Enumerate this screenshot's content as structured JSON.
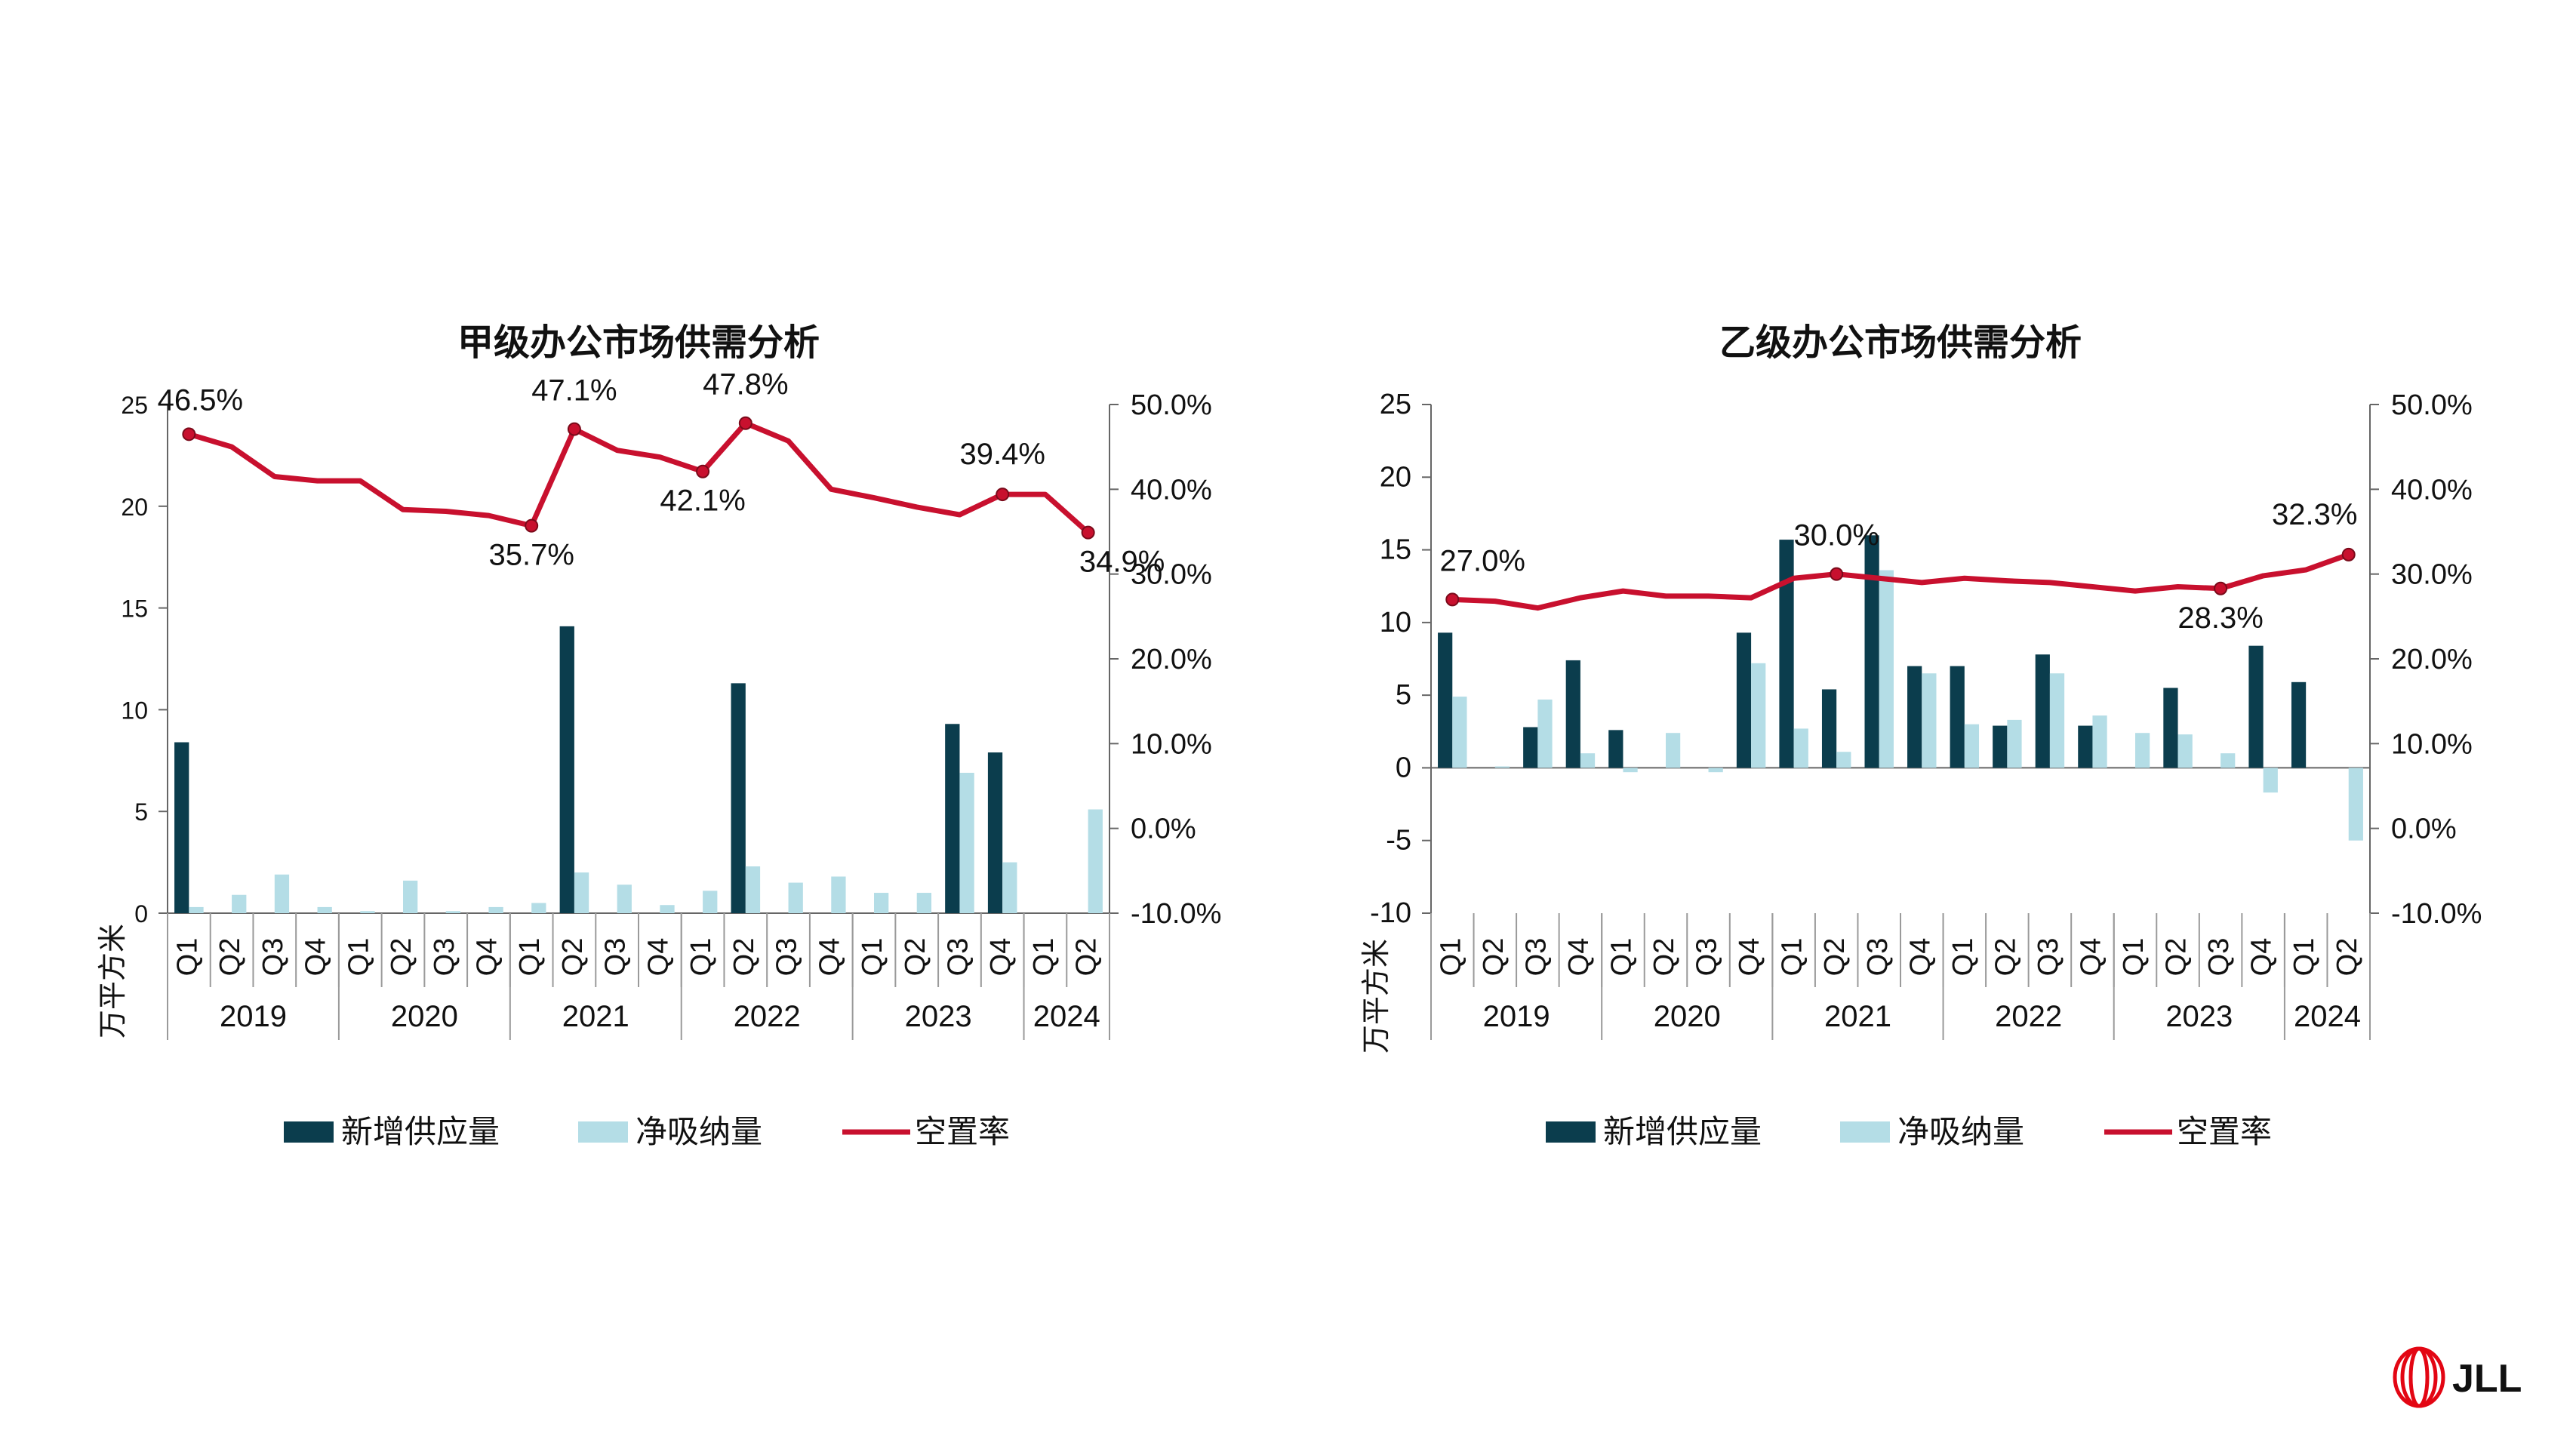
{
  "colors": {
    "supply": "#0b3d4d",
    "absorption": "#b4dde6",
    "vacancy": "#c8102e",
    "axis": "#666666",
    "text": "#111111",
    "brand": "#e30613"
  },
  "common": {
    "quarters": [
      "Q1",
      "Q2",
      "Q3",
      "Q4",
      "Q1",
      "Q2",
      "Q3",
      "Q4",
      "Q1",
      "Q2",
      "Q3",
      "Q4",
      "Q1",
      "Q2",
      "Q3",
      "Q4",
      "Q1",
      "Q2",
      "Q3",
      "Q4",
      "Q1",
      "Q2"
    ],
    "years": [
      {
        "label": "2019",
        "span": 4
      },
      {
        "label": "2020",
        "span": 4
      },
      {
        "label": "2021",
        "span": 4
      },
      {
        "label": "2022",
        "span": 4
      },
      {
        "label": "2023",
        "span": 4
      },
      {
        "label": "2024",
        "span": 2
      }
    ],
    "legend": {
      "supply": "新增供应量",
      "absorption": "净吸纳量",
      "vacancy": "空置率"
    },
    "unit_label": "万平方米"
  },
  "brand": {
    "text": "JLL"
  },
  "chart_data": [
    {
      "type": "bar+line",
      "title": "甲级办公市场供需分析",
      "ylabel": "万平方米",
      "ylim": [
        0,
        25
      ],
      "y_ticks": [
        "25",
        "20",
        "15",
        "10",
        "5",
        "0"
      ],
      "y2lim": [
        -10,
        50
      ],
      "y2_ticks": [
        "50.0%",
        "40.0%",
        "30.0%",
        "20.0%",
        "10.0%",
        "0.0%",
        "-10.0%"
      ],
      "series": [
        {
          "name": "新增供应量",
          "kind": "bar",
          "values": [
            8.4,
            0,
            0,
            0,
            0,
            0,
            0,
            0,
            0,
            14.1,
            0,
            0,
            0,
            11.3,
            0,
            0,
            0,
            0,
            9.3,
            7.9,
            0,
            0
          ]
        },
        {
          "name": "净吸纳量",
          "kind": "bar",
          "values": [
            0.3,
            0.9,
            1.9,
            0.3,
            0.1,
            1.6,
            0.1,
            0.3,
            0.5,
            2.0,
            1.4,
            0.4,
            1.1,
            2.3,
            1.5,
            1.8,
            1.0,
            1.0,
            6.9,
            2.5,
            0,
            5.1
          ]
        },
        {
          "name": "空置率",
          "kind": "line",
          "axis": "right",
          "values": [
            46.5,
            45.0,
            41.5,
            41.0,
            41.0,
            37.6,
            37.4,
            36.9,
            35.7,
            47.1,
            44.6,
            43.8,
            42.1,
            47.8,
            45.7,
            40.0,
            39.0,
            37.9,
            37.0,
            39.4,
            39.4,
            34.9
          ]
        }
      ],
      "annotations": [
        {
          "index": 0,
          "label": "46.5%"
        },
        {
          "index": 8,
          "label": "35.7%"
        },
        {
          "index": 9,
          "label": "47.1%"
        },
        {
          "index": 12,
          "label": "42.1%"
        },
        {
          "index": 13,
          "label": "47.8%"
        },
        {
          "index": 19,
          "label": "39.4%"
        },
        {
          "index": 21,
          "label": "34.9%"
        }
      ]
    },
    {
      "type": "bar+line",
      "title": "乙级办公市场供需分析",
      "ylabel": "万平方米",
      "ylim": [
        -10,
        25
      ],
      "y_ticks": [
        "25",
        "20",
        "15",
        "10",
        "5",
        "0",
        "-5",
        "-10"
      ],
      "y2lim": [
        -10,
        50
      ],
      "y2_ticks": [
        "50.0%",
        "40.0%",
        "30.0%",
        "20.0%",
        "10.0%",
        "0.0%",
        "-10.0%"
      ],
      "series": [
        {
          "name": "新增供应量",
          "kind": "bar",
          "values": [
            9.3,
            0,
            2.8,
            7.4,
            2.6,
            0,
            0,
            9.3,
            15.7,
            5.4,
            16.0,
            7.0,
            7.0,
            2.9,
            7.8,
            2.9,
            0,
            5.5,
            0,
            8.4,
            5.9,
            0
          ]
        },
        {
          "name": "净吸纳量",
          "kind": "bar",
          "values": [
            4.9,
            0.1,
            4.7,
            1.0,
            -0.3,
            2.4,
            -0.3,
            7.2,
            2.7,
            1.1,
            13.6,
            6.5,
            3.0,
            3.3,
            6.5,
            3.6,
            2.4,
            2.3,
            1.0,
            -1.7,
            0,
            -5.0
          ]
        },
        {
          "name": "空置率",
          "kind": "line",
          "axis": "right",
          "values": [
            27.0,
            26.8,
            26.0,
            27.2,
            28.0,
            27.4,
            27.4,
            27.2,
            29.5,
            30.0,
            29.5,
            29.0,
            29.5,
            29.2,
            29.0,
            28.5,
            28.0,
            28.5,
            28.3,
            29.8,
            30.5,
            32.3
          ]
        }
      ],
      "annotations": [
        {
          "index": 0,
          "label": "27.0%"
        },
        {
          "index": 9,
          "label": "30.0%"
        },
        {
          "index": 18,
          "label": "28.3%"
        },
        {
          "index": 21,
          "label": "32.3%"
        }
      ]
    }
  ]
}
